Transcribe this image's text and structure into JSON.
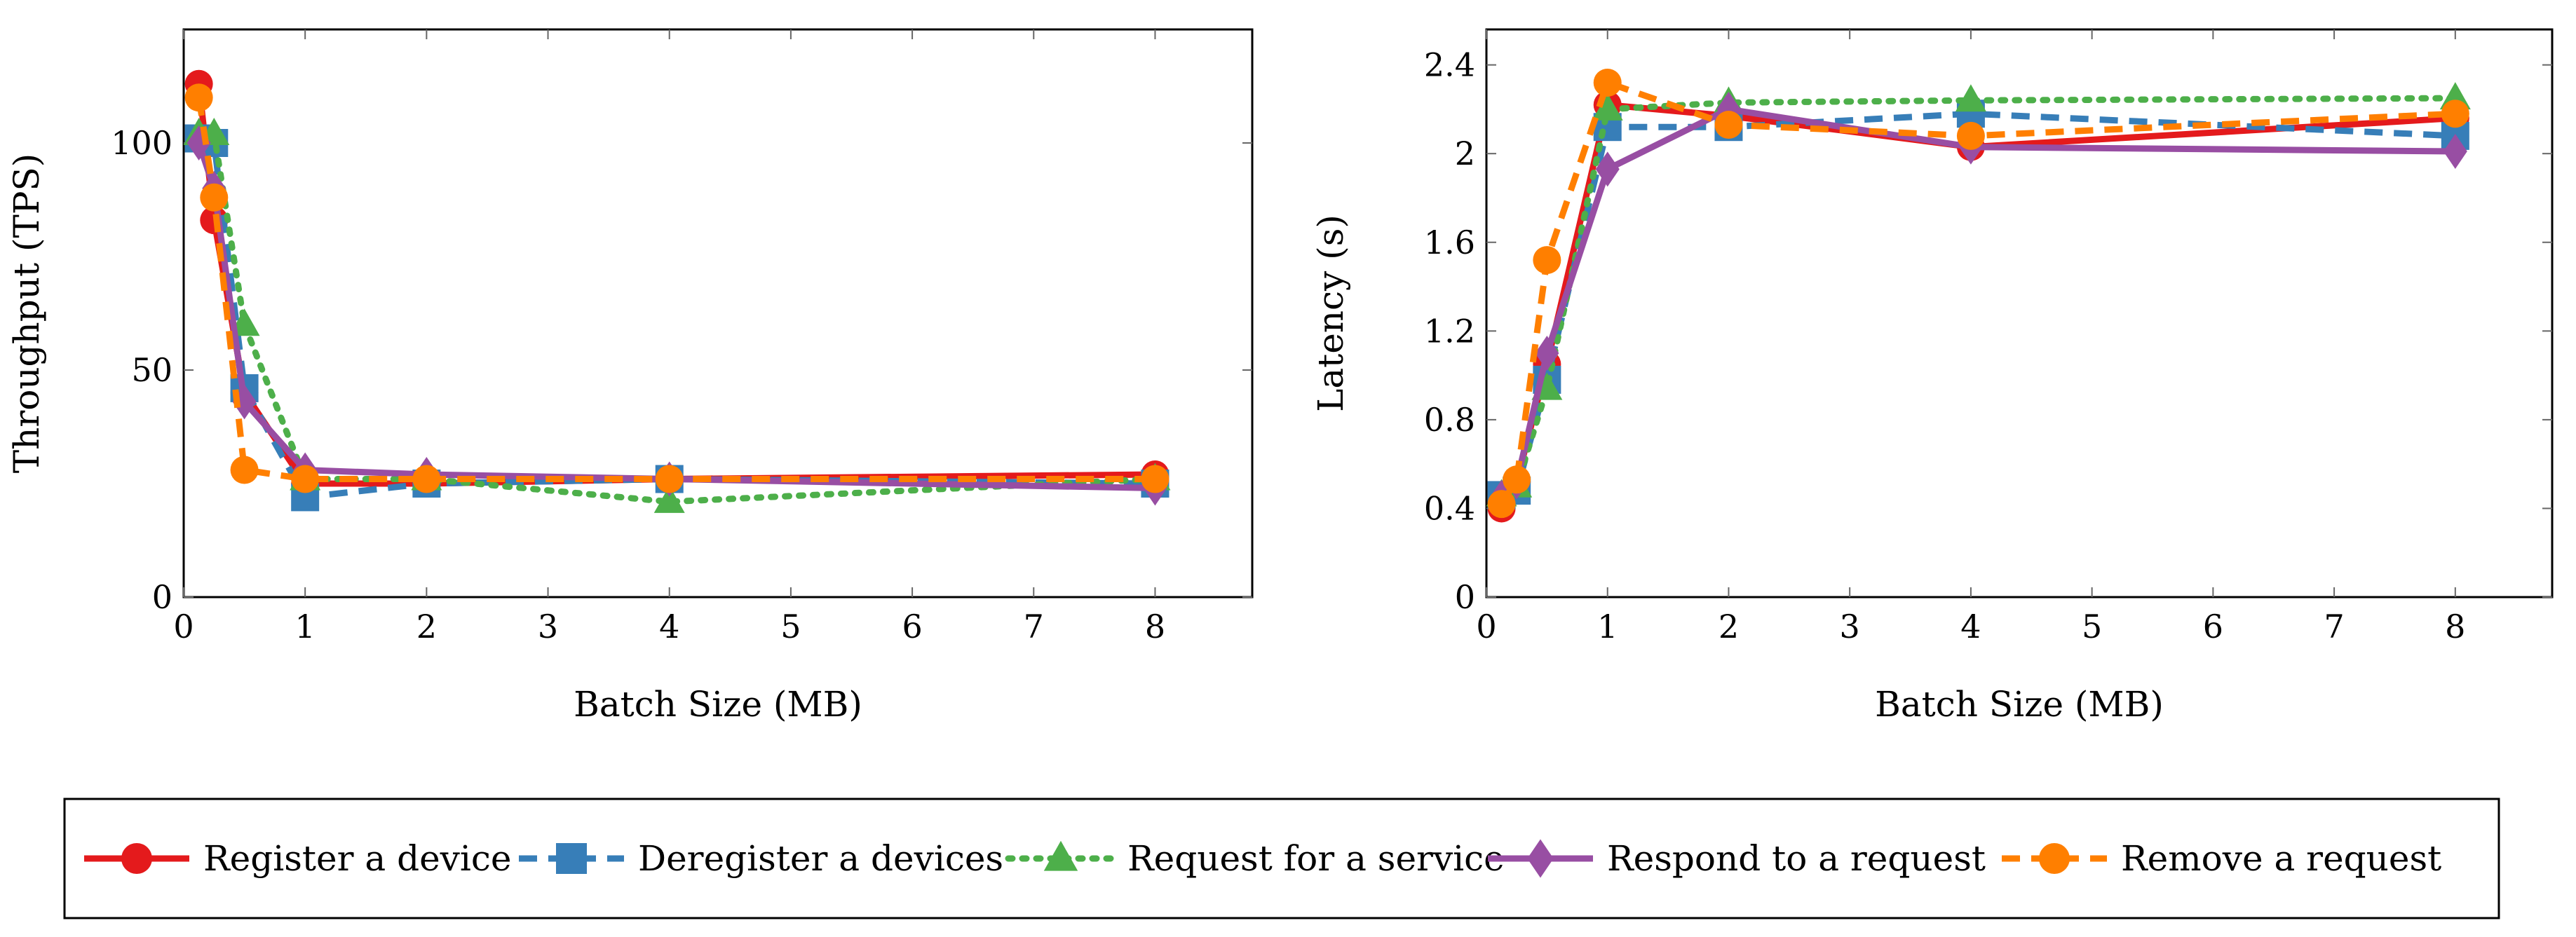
{
  "chart_data": [
    {
      "type": "line",
      "xlabel": "Batch Size (MB)",
      "ylabel": "Throughput (TPS)",
      "xlim": [
        0,
        8.8
      ],
      "ylim": [
        0,
        125
      ],
      "xticks": [
        0,
        1,
        2,
        3,
        4,
        5,
        6,
        7,
        8
      ],
      "yticks": [
        0,
        50,
        100
      ],
      "series": [
        {
          "name": "Register a device",
          "x": [
            0.125,
            0.25,
            0.5,
            1,
            2,
            4,
            8
          ],
          "y": [
            113,
            83,
            45,
            25,
            25,
            26,
            27
          ]
        },
        {
          "name": "Deregister a devices",
          "x": [
            0.125,
            0.25,
            0.5,
            1,
            2,
            4,
            8
          ],
          "y": [
            101,
            100,
            46,
            22,
            25,
            26,
            25
          ]
        },
        {
          "name": "Request for a service",
          "x": [
            0.125,
            0.25,
            0.5,
            1,
            2,
            4,
            8
          ],
          "y": [
            102,
            102,
            60,
            26,
            26,
            21,
            26
          ]
        },
        {
          "name": "Respond to a request",
          "x": [
            0.125,
            0.25,
            0.5,
            1,
            2,
            4,
            8
          ],
          "y": [
            100,
            90,
            43,
            28,
            27,
            26,
            24
          ]
        },
        {
          "name": "Remove a request",
          "x": [
            0.125,
            0.25,
            0.5,
            1,
            2,
            4,
            8
          ],
          "y": [
            110,
            88,
            28,
            26,
            26,
            26,
            26
          ]
        }
      ]
    },
    {
      "type": "line",
      "xlabel": "Batch Size (MB)",
      "ylabel": "Latency (s)",
      "xlim": [
        0,
        8.8
      ],
      "ylim": [
        0,
        2.56
      ],
      "xticks": [
        0,
        1,
        2,
        3,
        4,
        5,
        6,
        7,
        8
      ],
      "yticks": [
        0,
        0.4,
        0.8,
        1.2,
        1.6,
        2,
        2.4
      ],
      "series": [
        {
          "name": "Register a device",
          "x": [
            0.125,
            0.25,
            0.5,
            1,
            2,
            4,
            8
          ],
          "y": [
            0.4,
            0.52,
            1.05,
            2.22,
            2.17,
            2.03,
            2.16
          ]
        },
        {
          "name": "Deregister a devices",
          "x": [
            0.125,
            0.25,
            0.5,
            1,
            2,
            4,
            8
          ],
          "y": [
            0.46,
            0.48,
            0.98,
            2.12,
            2.12,
            2.18,
            2.08
          ]
        },
        {
          "name": "Request for a service",
          "x": [
            0.125,
            0.25,
            0.5,
            1,
            2,
            4,
            8
          ],
          "y": [
            0.46,
            0.5,
            0.94,
            2.2,
            2.23,
            2.24,
            2.25
          ]
        },
        {
          "name": "Respond to a request",
          "x": [
            0.125,
            0.25,
            0.5,
            1,
            2,
            4,
            8
          ],
          "y": [
            0.45,
            0.52,
            1.1,
            1.93,
            2.2,
            2.03,
            2.01
          ]
        },
        {
          "name": "Remove a request",
          "x": [
            0.125,
            0.25,
            0.5,
            1,
            2,
            4,
            8
          ],
          "y": [
            0.42,
            0.53,
            1.52,
            2.32,
            2.13,
            2.08,
            2.18
          ]
        }
      ]
    }
  ],
  "legend": {
    "entries": [
      {
        "label": "Register a device",
        "color": "#e41a1c",
        "dash": "solid",
        "marker": "circle"
      },
      {
        "label": "Deregister a devices",
        "color": "#377eb8",
        "dash": "dashed",
        "marker": "square"
      },
      {
        "label": "Request for a service",
        "color": "#4daf4a",
        "dash": "dotted",
        "marker": "triangle"
      },
      {
        "label": "Respond to a request",
        "color": "#984ea3",
        "dash": "solid",
        "marker": "diamond"
      },
      {
        "label": "Remove a request",
        "color": "#ff7f00",
        "dash": "dashed",
        "marker": "circle"
      }
    ]
  }
}
